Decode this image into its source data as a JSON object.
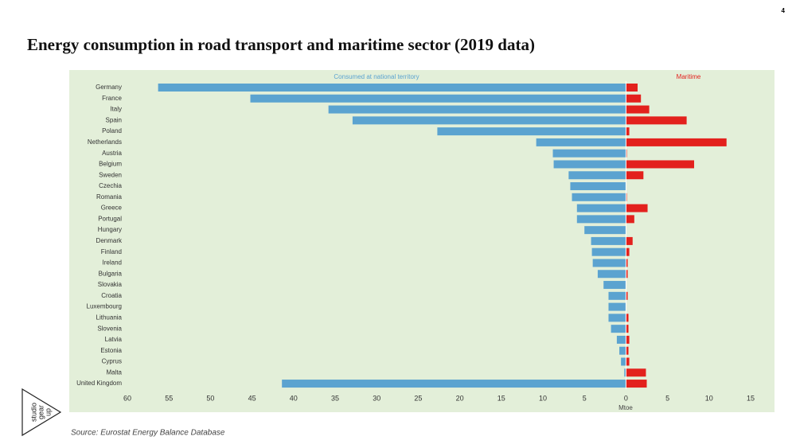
{
  "page_number": "4",
  "source": "Source: Eurostat Energy Balance Database",
  "logo": [
    "studio",
    "gear",
    "up"
  ],
  "chart_data": {
    "type": "bar",
    "orientation": "horizontal",
    "title": "Energy consumption in road transport and maritime sector (2019 data)",
    "x_label": "Mtoe",
    "categories": [
      "Germany",
      "France",
      "Italy",
      "Spain",
      "Poland",
      "Netherlands",
      "Austria",
      "Belgium",
      "Sweden",
      "Czechia",
      "Romania",
      "Greece",
      "Portugal",
      "Hungary",
      "Denmark",
      "Finland",
      "Ireland",
      "Bulgaria",
      "Slovakia",
      "Croatia",
      "Luxembourg",
      "Lithuania",
      "Slovenia",
      "Latvia",
      "Estonia",
      "Cyprus",
      "Malta",
      "United Kingdom"
    ],
    "series": [
      {
        "name": "Consumed at national territory",
        "color": "#5ba3d0",
        "values": [
          -56.3,
          -45.2,
          -35.8,
          -32.9,
          -22.7,
          -10.8,
          -8.8,
          -8.7,
          -6.9,
          -6.7,
          -6.5,
          -5.9,
          -5.9,
          -5.0,
          -4.2,
          -4.1,
          -4.0,
          -3.4,
          -2.7,
          -2.1,
          -2.1,
          -2.1,
          -1.8,
          -1.1,
          -0.8,
          -0.6,
          -0.2,
          -41.4
        ]
      },
      {
        "name": "Maritime",
        "color": "#e3211d",
        "values": [
          1.4,
          1.8,
          2.8,
          7.3,
          0.4,
          12.1,
          0.1,
          8.2,
          2.1,
          0,
          0.1,
          2.6,
          1.0,
          0,
          0.8,
          0.4,
          0.2,
          0.2,
          0,
          0.2,
          0,
          0.3,
          0.3,
          0.4,
          0.3,
          0.4,
          2.4,
          2.5
        ]
      }
    ],
    "xlim": [
      -60,
      15
    ],
    "xticks": [
      {
        "value": -60,
        "label": "60"
      },
      {
        "value": -55,
        "label": "55"
      },
      {
        "value": -50,
        "label": "50"
      },
      {
        "value": -45,
        "label": "45"
      },
      {
        "value": -40,
        "label": "40"
      },
      {
        "value": -35,
        "label": "35"
      },
      {
        "value": -30,
        "label": "30"
      },
      {
        "value": -25,
        "label": "25"
      },
      {
        "value": -20,
        "label": "20"
      },
      {
        "value": -15,
        "label": "15"
      },
      {
        "value": -10,
        "label": "10"
      },
      {
        "value": -5,
        "label": "5"
      },
      0,
      5,
      10,
      15
    ],
    "grid": false
  }
}
